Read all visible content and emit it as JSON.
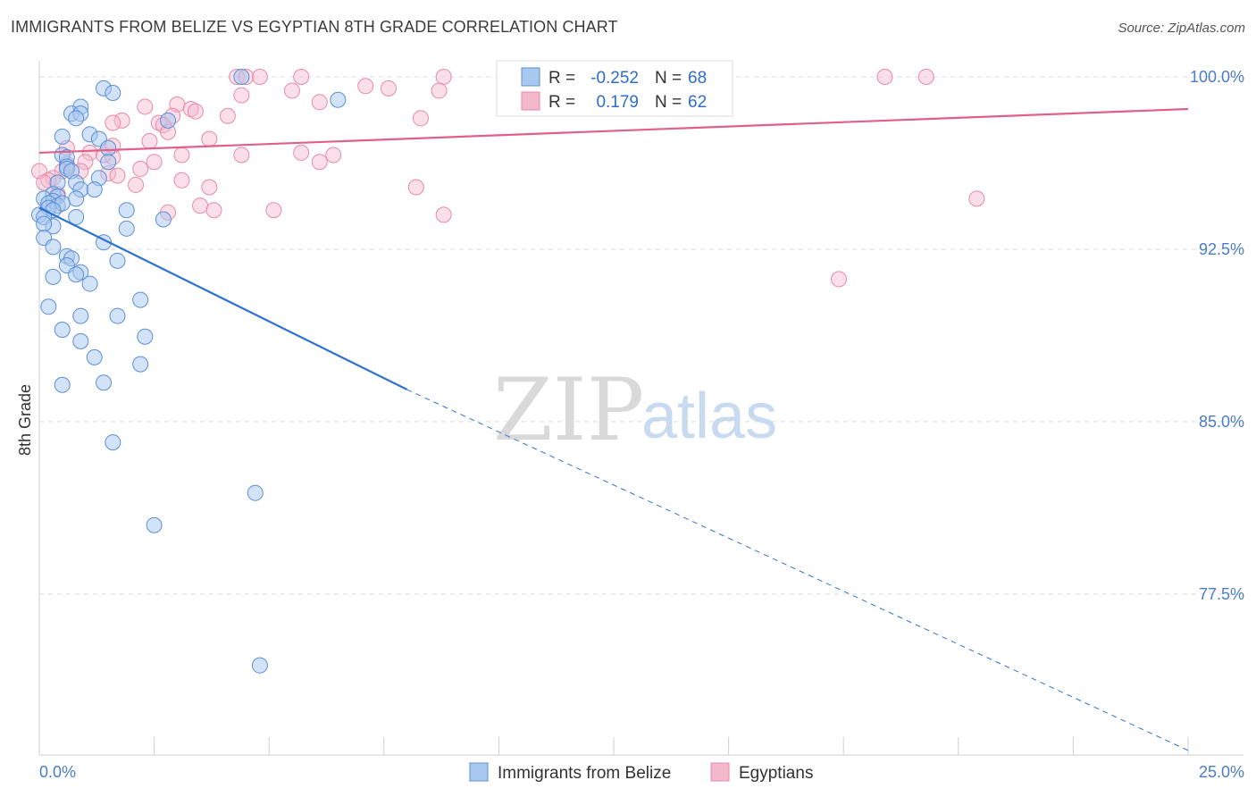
{
  "title": "IMMIGRANTS FROM BELIZE VS EGYPTIAN 8TH GRADE CORRELATION CHART",
  "source": "Source: ZipAtlas.com",
  "watermark": {
    "zip": "ZIP",
    "atlas": "atlas"
  },
  "legend": {
    "r_label": "R =",
    "n_label": "N =",
    "rows": [
      {
        "r": "-0.252",
        "n": "68",
        "color": "#a8c8f0"
      },
      {
        "r": "0.179",
        "n": "62",
        "color": "#f4b8cb"
      }
    ]
  },
  "colors": {
    "blue_fill": "#a8c8f0",
    "blue_stroke": "#5b8fd6",
    "blue_line": "#2f73d0",
    "pink_fill": "#f4b8cb",
    "pink_stroke": "#e88aa8",
    "pink_line": "#e0608a",
    "grid": "#dcdcdc",
    "tick_label": "#4a7cc7"
  },
  "chart_data": {
    "type": "scatter",
    "title": "IMMIGRANTS FROM BELIZE VS EGYPTIAN 8TH GRADE CORRELATION CHART",
    "xlabel": "",
    "ylabel": "8th Grade",
    "xlim": [
      0,
      25
    ],
    "ylim": [
      70.5,
      100.7
    ],
    "x_tick_labels": [
      "0.0%",
      "25.0%"
    ],
    "y_ticks": [
      {
        "value": 100.0,
        "label": "100.0%"
      },
      {
        "value": 92.5,
        "label": "92.5%"
      },
      {
        "value": 85.0,
        "label": "85.0%"
      },
      {
        "value": 77.5,
        "label": "77.5%"
      }
    ],
    "grid": true,
    "legend_position": "top-center",
    "series": [
      {
        "name": "Immigrants from Belize",
        "color": "#a8c8f0",
        "r": -0.252,
        "n": 68,
        "trend": {
          "x": [
            0,
            8.0
          ],
          "y": [
            94.3,
            86.4
          ]
        },
        "trend_extension": {
          "x": [
            8.0,
            25
          ],
          "y": [
            86.4,
            70.7
          ]
        },
        "points": [
          [
            1.4,
            99.5
          ],
          [
            1.6,
            99.3
          ],
          [
            0.9,
            98.7
          ],
          [
            0.7,
            98.4
          ],
          [
            0.9,
            98.4
          ],
          [
            0.8,
            98.2
          ],
          [
            6.5,
            99.0
          ],
          [
            4.4,
            100.0
          ],
          [
            2.8,
            98.1
          ],
          [
            0.5,
            97.4
          ],
          [
            1.1,
            97.5
          ],
          [
            1.3,
            97.3
          ],
          [
            1.5,
            96.9
          ],
          [
            0.5,
            96.6
          ],
          [
            0.6,
            96.5
          ],
          [
            1.5,
            96.3
          ],
          [
            0.6,
            96.1
          ],
          [
            0.6,
            96.0
          ],
          [
            0.7,
            95.9
          ],
          [
            1.3,
            95.6
          ],
          [
            0.4,
            95.4
          ],
          [
            0.8,
            95.4
          ],
          [
            0.9,
            95.1
          ],
          [
            1.2,
            95.1
          ],
          [
            0.3,
            94.9
          ],
          [
            0.4,
            94.8
          ],
          [
            0.1,
            94.7
          ],
          [
            0.3,
            94.6
          ],
          [
            0.8,
            94.7
          ],
          [
            0.2,
            94.5
          ],
          [
            0.4,
            94.4
          ],
          [
            0.5,
            94.5
          ],
          [
            0.2,
            94.3
          ],
          [
            0.3,
            94.2
          ],
          [
            0.0,
            94.0
          ],
          [
            0.1,
            93.9
          ],
          [
            0.8,
            93.9
          ],
          [
            1.9,
            94.2
          ],
          [
            2.7,
            93.8
          ],
          [
            0.3,
            93.5
          ],
          [
            0.1,
            93.6
          ],
          [
            1.9,
            93.4
          ],
          [
            0.1,
            93.0
          ],
          [
            0.3,
            92.6
          ],
          [
            1.4,
            92.8
          ],
          [
            0.6,
            92.2
          ],
          [
            0.7,
            92.1
          ],
          [
            1.7,
            92.0
          ],
          [
            0.6,
            91.8
          ],
          [
            0.9,
            91.5
          ],
          [
            0.8,
            91.4
          ],
          [
            0.3,
            91.3
          ],
          [
            1.1,
            91.0
          ],
          [
            2.2,
            90.3
          ],
          [
            0.2,
            90.0
          ],
          [
            0.9,
            89.6
          ],
          [
            1.7,
            89.6
          ],
          [
            0.5,
            89.0
          ],
          [
            2.3,
            88.7
          ],
          [
            0.9,
            88.5
          ],
          [
            1.2,
            87.8
          ],
          [
            2.2,
            87.5
          ],
          [
            1.4,
            86.7
          ],
          [
            0.5,
            86.6
          ],
          [
            1.6,
            84.1
          ],
          [
            4.7,
            81.9
          ],
          [
            2.5,
            80.5
          ],
          [
            4.8,
            74.4
          ]
        ]
      },
      {
        "name": "Egyptians",
        "color": "#f4b8cb",
        "r": 0.179,
        "n": 62,
        "trend": {
          "x": [
            0,
            25
          ],
          "y": [
            96.7,
            98.6
          ]
        },
        "points": [
          [
            4.3,
            100.0
          ],
          [
            4.5,
            100.0
          ],
          [
            4.8,
            100.0
          ],
          [
            5.7,
            100.0
          ],
          [
            8.8,
            100.0
          ],
          [
            18.4,
            100.0
          ],
          [
            19.3,
            100.0
          ],
          [
            7.1,
            99.6
          ],
          [
            7.6,
            99.5
          ],
          [
            5.5,
            99.4
          ],
          [
            8.7,
            99.4
          ],
          [
            4.4,
            99.2
          ],
          [
            6.1,
            98.9
          ],
          [
            3.0,
            98.8
          ],
          [
            2.3,
            98.7
          ],
          [
            3.3,
            98.6
          ],
          [
            3.4,
            98.5
          ],
          [
            2.9,
            98.3
          ],
          [
            4.1,
            98.3
          ],
          [
            8.3,
            98.2
          ],
          [
            1.8,
            98.1
          ],
          [
            1.6,
            98.0
          ],
          [
            2.6,
            98.0
          ],
          [
            2.7,
            97.9
          ],
          [
            2.8,
            97.6
          ],
          [
            3.7,
            97.3
          ],
          [
            2.4,
            97.2
          ],
          [
            1.6,
            97.0
          ],
          [
            0.6,
            96.9
          ],
          [
            1.1,
            96.7
          ],
          [
            5.7,
            96.7
          ],
          [
            4.4,
            96.6
          ],
          [
            3.1,
            96.6
          ],
          [
            1.4,
            96.6
          ],
          [
            1.6,
            96.5
          ],
          [
            6.4,
            96.6
          ],
          [
            2.5,
            96.3
          ],
          [
            1.0,
            96.3
          ],
          [
            0.6,
            96.2
          ],
          [
            6.1,
            96.3
          ],
          [
            2.2,
            96.0
          ],
          [
            0.5,
            95.9
          ],
          [
            1.5,
            95.8
          ],
          [
            0.0,
            95.9
          ],
          [
            1.7,
            95.7
          ],
          [
            0.9,
            95.9
          ],
          [
            0.3,
            95.6
          ],
          [
            0.2,
            95.5
          ],
          [
            0.1,
            95.4
          ],
          [
            3.1,
            95.5
          ],
          [
            2.1,
            95.3
          ],
          [
            3.7,
            95.2
          ],
          [
            8.2,
            95.2
          ],
          [
            0.4,
            94.9
          ],
          [
            0.4,
            94.8
          ],
          [
            3.5,
            94.4
          ],
          [
            3.8,
            94.2
          ],
          [
            5.1,
            94.2
          ],
          [
            2.8,
            94.1
          ],
          [
            8.8,
            94.0
          ],
          [
            20.4,
            94.7
          ],
          [
            17.4,
            91.2
          ]
        ]
      }
    ]
  }
}
